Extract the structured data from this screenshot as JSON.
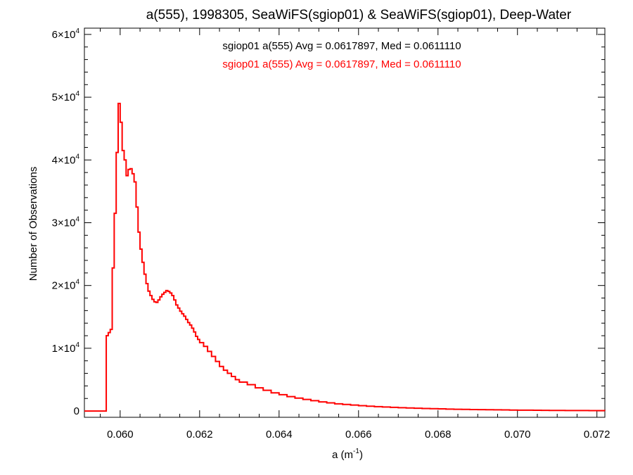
{
  "chart_data": {
    "type": "line",
    "style": "step histogram",
    "title": "a(555), 1998305, SeaWiFS(sgiop01) & SeaWiFS(sgiop01), Deep-Water",
    "xlabel_base": "a (m",
    "xlabel_sup": "-1",
    "xlabel_tail": ")",
    "ylabel": "Number of Observations",
    "xlim": [
      0.0591,
      0.0722
    ],
    "ylim": [
      -1000,
      61000
    ],
    "x_ticks": [
      {
        "value": 0.06,
        "label": "0.060"
      },
      {
        "value": 0.062,
        "label": "0.062"
      },
      {
        "value": 0.064,
        "label": "0.064"
      },
      {
        "value": 0.066,
        "label": "0.066"
      },
      {
        "value": 0.068,
        "label": "0.068"
      },
      {
        "value": 0.07,
        "label": "0.070"
      },
      {
        "value": 0.072,
        "label": "0.072"
      }
    ],
    "y_ticks": [
      {
        "value": 0,
        "label": "0",
        "base": "",
        "exp": ""
      },
      {
        "value": 10000,
        "label": "",
        "base": "1×10",
        "exp": "4"
      },
      {
        "value": 20000,
        "label": "",
        "base": "2×10",
        "exp": "4"
      },
      {
        "value": 30000,
        "label": "",
        "base": "3×10",
        "exp": "4"
      },
      {
        "value": 40000,
        "label": "",
        "base": "4×10",
        "exp": "4"
      },
      {
        "value": 50000,
        "label": "",
        "base": "5×10",
        "exp": "4"
      },
      {
        "value": 60000,
        "label": "",
        "base": "6×10",
        "exp": "4"
      }
    ],
    "annotations": [
      {
        "text": "sgiop01 a(555) Avg = 0.0617897, Med = 0.0611110",
        "color": "#000000"
      },
      {
        "text": "sgiop01 a(555) Avg = 0.0617897, Med = 0.0611110",
        "color": "#ff0000"
      }
    ],
    "series": [
      {
        "color": "#ff0000",
        "points": [
          [
            0.0591,
            0
          ],
          [
            0.0596,
            0
          ],
          [
            0.05965,
            12000
          ],
          [
            0.0597,
            12500
          ],
          [
            0.05975,
            13000
          ],
          [
            0.0598,
            22800
          ],
          [
            0.05985,
            31500
          ],
          [
            0.0599,
            41200
          ],
          [
            0.05995,
            49000
          ],
          [
            0.06,
            46000
          ],
          [
            0.06005,
            41500
          ],
          [
            0.0601,
            40000
          ],
          [
            0.06015,
            37500
          ],
          [
            0.0602,
            38500
          ],
          [
            0.06025,
            38600
          ],
          [
            0.0603,
            37800
          ],
          [
            0.06035,
            36500
          ],
          [
            0.0604,
            32500
          ],
          [
            0.06045,
            28500
          ],
          [
            0.0605,
            25800
          ],
          [
            0.06055,
            23700
          ],
          [
            0.0606,
            21800
          ],
          [
            0.06065,
            20300
          ],
          [
            0.0607,
            19100
          ],
          [
            0.06075,
            18400
          ],
          [
            0.0608,
            17800
          ],
          [
            0.06085,
            17400
          ],
          [
            0.0609,
            17300
          ],
          [
            0.06095,
            17700
          ],
          [
            0.061,
            18200
          ],
          [
            0.06105,
            18600
          ],
          [
            0.0611,
            18900
          ],
          [
            0.06115,
            19200
          ],
          [
            0.0612,
            19050
          ],
          [
            0.06125,
            18800
          ],
          [
            0.0613,
            18400
          ],
          [
            0.06135,
            17700
          ],
          [
            0.0614,
            16900
          ],
          [
            0.06145,
            16400
          ],
          [
            0.0615,
            15900
          ],
          [
            0.06155,
            15500
          ],
          [
            0.0616,
            15100
          ],
          [
            0.06165,
            14600
          ],
          [
            0.0617,
            14100
          ],
          [
            0.06175,
            13700
          ],
          [
            0.0618,
            13200
          ],
          [
            0.06185,
            12600
          ],
          [
            0.0619,
            11900
          ],
          [
            0.06195,
            11400
          ],
          [
            0.062,
            10900
          ],
          [
            0.0621,
            10300
          ],
          [
            0.0622,
            9500
          ],
          [
            0.0623,
            8700
          ],
          [
            0.0624,
            7900
          ],
          [
            0.0625,
            7100
          ],
          [
            0.0626,
            6500
          ],
          [
            0.0627,
            6000
          ],
          [
            0.0628,
            5500
          ],
          [
            0.0629,
            5000
          ],
          [
            0.063,
            4600
          ],
          [
            0.0632,
            4200
          ],
          [
            0.0634,
            3700
          ],
          [
            0.0636,
            3300
          ],
          [
            0.0638,
            2900
          ],
          [
            0.064,
            2600
          ],
          [
            0.0642,
            2300
          ],
          [
            0.0644,
            2050
          ],
          [
            0.0646,
            1850
          ],
          [
            0.0648,
            1650
          ],
          [
            0.065,
            1450
          ],
          [
            0.0652,
            1300
          ],
          [
            0.0654,
            1150
          ],
          [
            0.0656,
            1050
          ],
          [
            0.0658,
            950
          ],
          [
            0.066,
            850
          ],
          [
            0.0662,
            770
          ],
          [
            0.0664,
            700
          ],
          [
            0.0666,
            640
          ],
          [
            0.0668,
            580
          ],
          [
            0.067,
            530
          ],
          [
            0.0672,
            480
          ],
          [
            0.0674,
            440
          ],
          [
            0.0676,
            400
          ],
          [
            0.0678,
            370
          ],
          [
            0.068,
            340
          ],
          [
            0.0682,
            310
          ],
          [
            0.0684,
            280
          ],
          [
            0.0686,
            260
          ],
          [
            0.0688,
            240
          ],
          [
            0.069,
            220
          ],
          [
            0.0692,
            200
          ],
          [
            0.0694,
            185
          ],
          [
            0.0696,
            170
          ],
          [
            0.0698,
            155
          ],
          [
            0.07,
            140
          ],
          [
            0.0702,
            130
          ],
          [
            0.0704,
            120
          ],
          [
            0.0706,
            110
          ],
          [
            0.0708,
            100
          ],
          [
            0.071,
            90
          ],
          [
            0.0712,
            85
          ],
          [
            0.0714,
            80
          ],
          [
            0.0716,
            75
          ],
          [
            0.0718,
            70
          ],
          [
            0.072,
            65
          ],
          [
            0.0722,
            60
          ]
        ]
      }
    ]
  }
}
